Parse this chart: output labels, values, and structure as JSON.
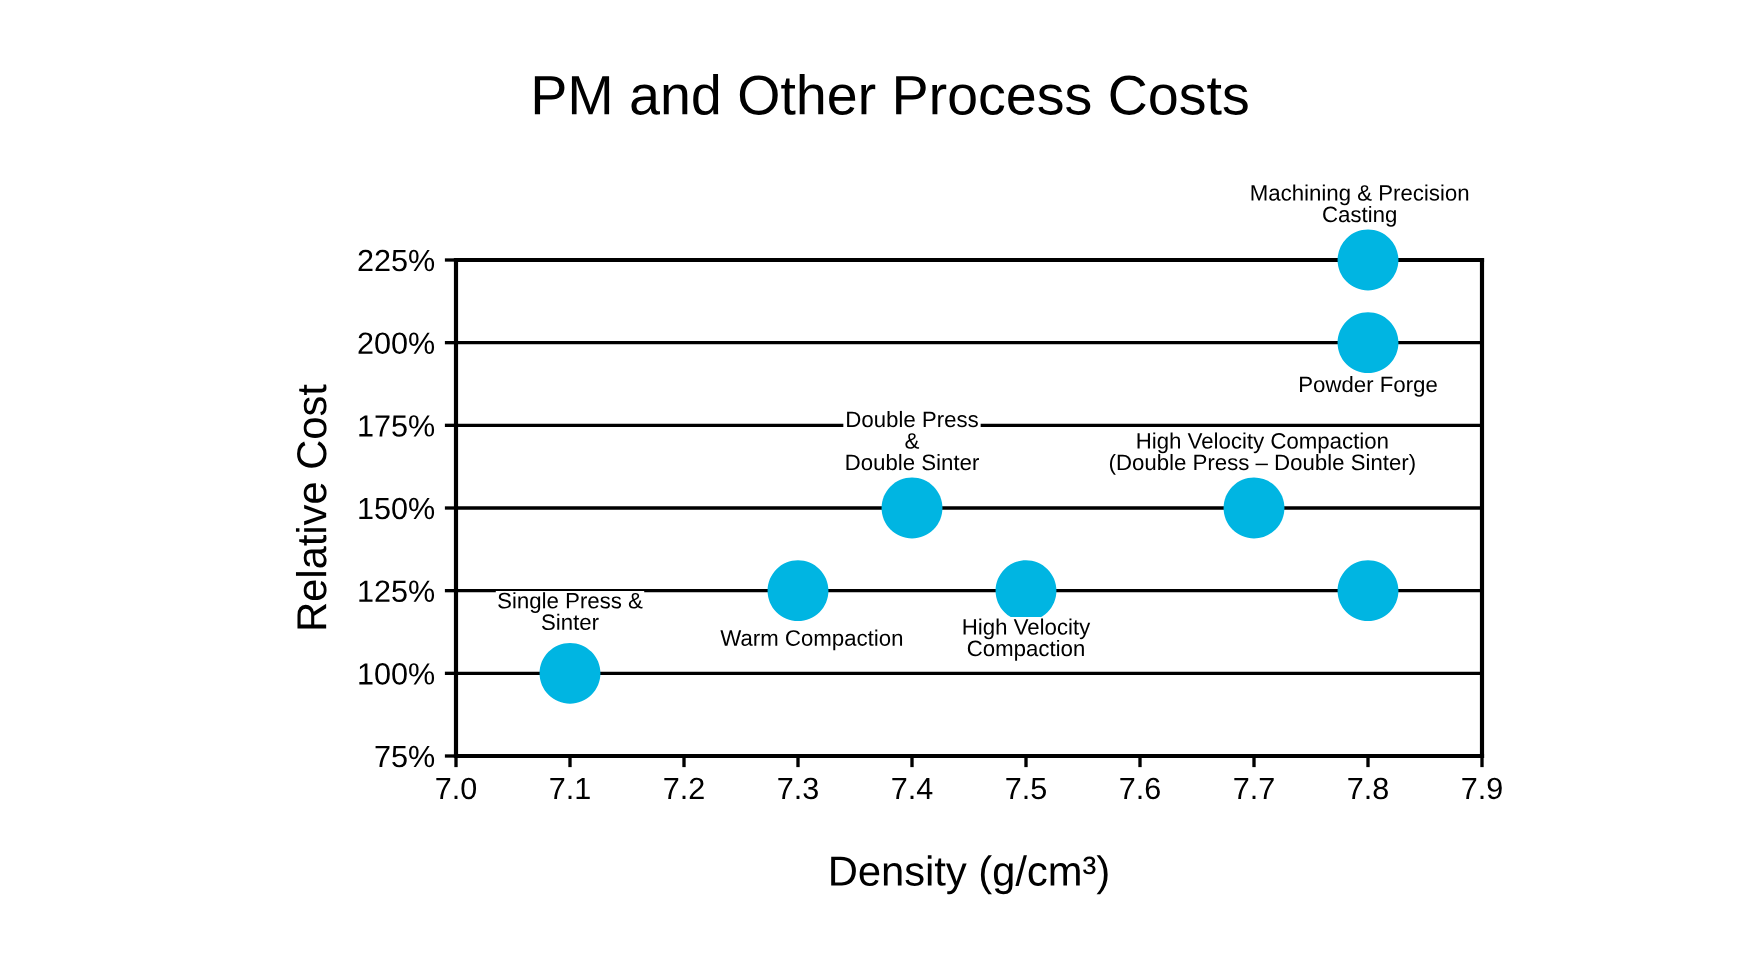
{
  "chart_data": {
    "type": "scatter",
    "title": "PM and Other Process Costs",
    "xlabel": "Density (g/cm³)",
    "ylabel": "Relative Cost",
    "x": [
      7.1,
      7.3,
      7.4,
      7.5,
      7.7,
      7.8,
      7.8,
      7.8
    ],
    "series": [
      {
        "color": "#00b5e2",
        "values": [
          100,
          125,
          150,
          125,
          150,
          125,
          200,
          225
        ]
      }
    ],
    "xlim": [
      7.0,
      7.9
    ],
    "xticks": [
      {
        "value": 7.0,
        "label": "7.0"
      },
      7.1,
      7.2,
      7.3,
      7.4,
      7.5,
      7.6,
      7.7,
      7.8,
      7.9
    ],
    "ylim": [
      75,
      225
    ],
    "yticks": [
      {
        "value": 75,
        "label": "75%"
      },
      {
        "value": 100,
        "label": "100%"
      },
      {
        "value": 125,
        "label": "125%"
      },
      {
        "value": 150,
        "label": "150%"
      },
      {
        "value": 175,
        "label": "175%"
      },
      {
        "value": 200,
        "label": "200%"
      },
      {
        "value": 225,
        "label": "225%"
      }
    ],
    "grid": "y",
    "marker": "circle",
    "annotations": [
      {
        "text": "Single Press &\nSinter",
        "x": 7.1,
        "y": 100
      },
      {
        "text": "Warm Compaction",
        "x": 7.3,
        "y": 125
      },
      {
        "text": "Double Press\n&\nDouble Sinter",
        "x": 7.4,
        "y": 150
      },
      {
        "text": "High Velocity\nCompaction",
        "x": 7.5,
        "y": 125
      },
      {
        "text": "High Velocity Compaction\n(Double Press – Double Sinter)",
        "x": 7.7,
        "y": 150
      },
      {
        "text": "Powder Forge",
        "x": 7.8,
        "y": 200
      },
      {
        "text": "Machining & Precision\nCasting",
        "x": 7.8,
        "y": 225
      }
    ]
  }
}
